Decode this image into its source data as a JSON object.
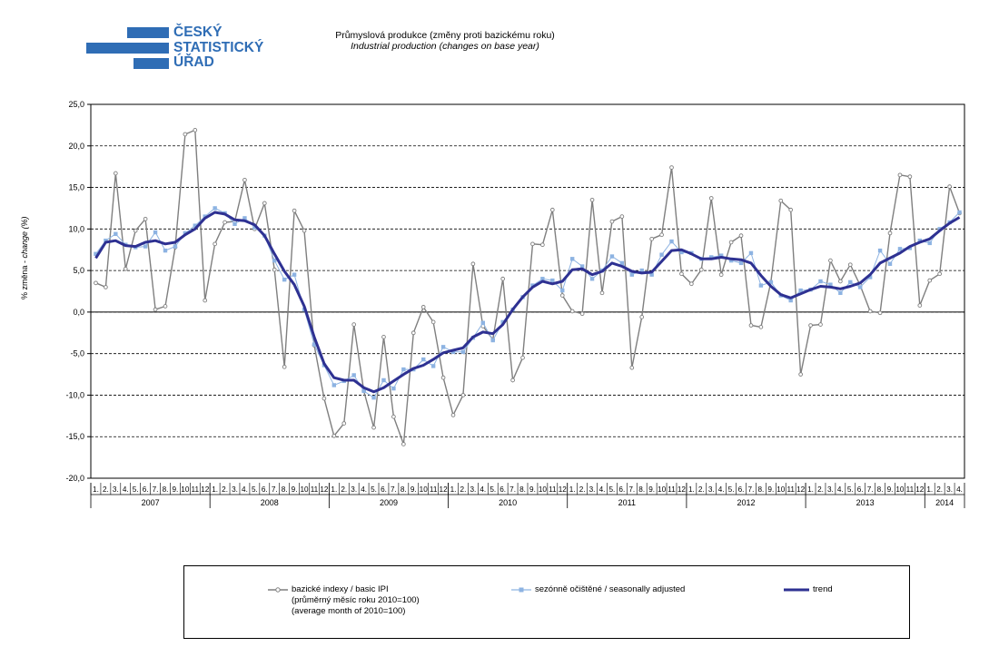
{
  "logo": {
    "lines": [
      "ČESKÝ",
      "STATISTICKÝ",
      "ÚŘAD"
    ]
  },
  "header": {
    "title_cz": "Průmyslová produkce (změny proti bazickému roku)",
    "title_en": "Industrial production (changes on base year)"
  },
  "colors": {
    "basic": "#7f7f7f",
    "seasonal": "#8db3e2",
    "trend": "#2e3192",
    "logo": "#2f6db5"
  },
  "chart_data": {
    "type": "line",
    "ylabel": "% změna - change (%)",
    "ylim": [
      -20,
      25
    ],
    "y_ticks": [
      "25,0",
      "20,0",
      "15,0",
      "10,0",
      "5,0",
      "0,0",
      "-5,0",
      "-10,0",
      "-15,0",
      "-20,0"
    ],
    "grid": "horizontal dashed",
    "legend_position": "bottom",
    "month_labels": [
      "1.",
      "2.",
      "3.",
      "4.",
      "5.",
      "6.",
      "7.",
      "8.",
      "9.",
      "10",
      "11",
      "12"
    ],
    "years": [
      {
        "label": "2007",
        "months": 12
      },
      {
        "label": "2008",
        "months": 12
      },
      {
        "label": "2009",
        "months": 12
      },
      {
        "label": "2010",
        "months": 12
      },
      {
        "label": "2011",
        "months": 12
      },
      {
        "label": "2012",
        "months": 12
      },
      {
        "label": "2013",
        "months": 12
      },
      {
        "label": "2014",
        "months": 4
      }
    ],
    "series": [
      {
        "name": "bazické indexy / basic IPI",
        "name_note1": "(průměrný měsíc roku 2010=100)",
        "name_note2": "(average month of 2010=100)",
        "key": "basic",
        "values": [
          3.5,
          3.0,
          16.7,
          5.2,
          9.8,
          11.2,
          0.3,
          0.7,
          7.8,
          21.4,
          21.9,
          1.4,
          8.2,
          10.8,
          10.9,
          15.9,
          10.0,
          13.1,
          5.1,
          -6.6,
          12.2,
          9.8,
          -4.0,
          -10.4,
          -14.9,
          -13.4,
          -1.5,
          -9.5,
          -13.9,
          -3.0,
          -12.6,
          -15.9,
          -2.5,
          0.6,
          -1.2,
          -7.9,
          -12.4,
          -10.0,
          5.8,
          -1.7,
          -3.3,
          4.0,
          -8.2,
          -5.5,
          8.2,
          8.1,
          12.3,
          2.0,
          0.1,
          -0.2,
          13.5,
          2.3,
          10.9,
          11.5,
          -6.7,
          -0.6,
          8.8,
          9.3,
          17.4,
          4.6,
          3.4,
          5.1,
          13.7,
          4.5,
          8.4,
          9.2,
          -1.6,
          -1.8,
          3.6,
          13.4,
          12.3,
          -7.5,
          -1.6,
          -1.5,
          6.2,
          3.7,
          5.7,
          3.2,
          0.1,
          -0.1,
          9.5,
          16.5,
          16.3,
          0.8,
          3.8,
          4.6,
          15.1,
          11.9
        ]
      },
      {
        "name": "sezónně očištěné / seasonally adjusted",
        "key": "seasonal",
        "values": [
          7.0,
          8.6,
          9.4,
          8.1,
          7.8,
          7.9,
          9.6,
          7.4,
          7.9,
          9.5,
          10.4,
          11.5,
          12.5,
          11.9,
          10.6,
          11.3,
          10.2,
          9.2,
          6.2,
          3.9,
          4.5,
          0.3,
          -3.9,
          -6.4,
          -8.8,
          -8.3,
          -7.6,
          -9.5,
          -10.3,
          -8.2,
          -9.2,
          -6.9,
          -6.9,
          -5.7,
          -6.5,
          -4.2,
          -4.8,
          -4.8,
          -3.1,
          -1.3,
          -3.4,
          -1.2,
          0.3,
          1.8,
          3.2,
          4.0,
          3.8,
          2.6,
          6.4,
          5.5,
          4.0,
          5.0,
          6.7,
          5.9,
          4.5,
          5.0,
          4.5,
          6.9,
          8.5,
          7.2,
          7.1,
          6.4,
          6.6,
          6.8,
          6.2,
          5.9,
          7.1,
          3.2,
          3.6,
          2.0,
          1.4,
          2.6,
          2.7,
          3.7,
          3.3,
          2.3,
          3.6,
          3.0,
          4.2,
          7.4,
          5.8,
          7.6,
          7.7,
          8.6,
          8.3,
          10.0,
          10.8,
          12.0
        ]
      },
      {
        "name": "trend",
        "key": "trend",
        "values": [
          6.5,
          8.4,
          8.6,
          8.0,
          7.9,
          8.4,
          8.6,
          8.2,
          8.4,
          9.3,
          10.0,
          11.3,
          12.0,
          11.8,
          11.1,
          11.0,
          10.5,
          9.2,
          7.0,
          4.9,
          3.3,
          0.7,
          -3.0,
          -6.2,
          -7.9,
          -8.2,
          -8.2,
          -9.1,
          -9.6,
          -9.1,
          -8.3,
          -7.5,
          -6.8,
          -6.4,
          -5.7,
          -4.9,
          -4.6,
          -4.3,
          -3.0,
          -2.4,
          -2.6,
          -1.5,
          0.3,
          1.8,
          3.0,
          3.7,
          3.4,
          3.7,
          5.1,
          5.2,
          4.5,
          4.9,
          5.9,
          5.5,
          4.9,
          4.7,
          4.8,
          6.1,
          7.4,
          7.5,
          7.0,
          6.4,
          6.4,
          6.6,
          6.4,
          6.3,
          5.9,
          4.4,
          3.1,
          2.1,
          1.7,
          2.2,
          2.7,
          3.1,
          3.0,
          2.8,
          3.1,
          3.5,
          4.5,
          5.9,
          6.5,
          7.1,
          7.9,
          8.4,
          8.8,
          9.8,
          10.7,
          11.4
        ]
      }
    ]
  }
}
